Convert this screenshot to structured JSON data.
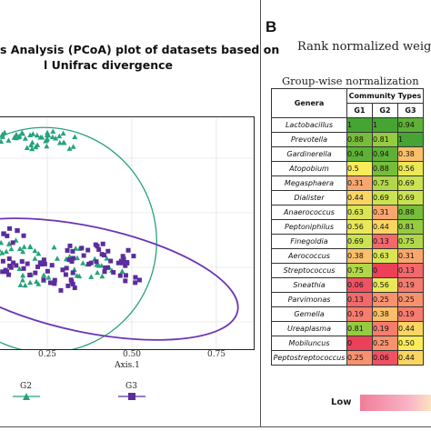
{
  "panel_a": {
    "title_line1": "s Analysis (PCoA) plot of datasets based on",
    "title_line2": "l Unifrac divergence",
    "xlabel": "Axis.1",
    "xticks": [
      "0.25",
      "0.50",
      "0.75"
    ],
    "legend": [
      {
        "label": "G2",
        "marker": "triangle",
        "color": "#26a27b"
      },
      {
        "label": "G3",
        "marker": "square",
        "color": "#5b2d9c"
      }
    ]
  },
  "panel_b": {
    "letter": "B",
    "title": "Rank normalized weights",
    "subtitle": "Group-wise normalization",
    "table": {
      "genera_header": "Genera",
      "group_header": "Community Types",
      "columns": [
        "G1",
        "G2",
        "G3"
      ],
      "rows": [
        {
          "genus": "Lactobacillus",
          "values": [
            "1",
            "1",
            "0.94"
          ]
        },
        {
          "genus": "Prevotella",
          "values": [
            "0.88",
            "0.81",
            "1"
          ]
        },
        {
          "genus": "Gardinerella",
          "values": [
            "0.94",
            "0.94",
            "0.38"
          ]
        },
        {
          "genus": "Atopobium",
          "values": [
            "0.5",
            "0.88",
            "0.56"
          ]
        },
        {
          "genus": "Megasphaera",
          "values": [
            "0.31",
            "0.75",
            "0.69"
          ]
        },
        {
          "genus": "Dialister",
          "values": [
            "0.44",
            "0.69",
            "0.69"
          ]
        },
        {
          "genus": "Anaerococcus",
          "values": [
            "0.63",
            "0.31",
            "0.88"
          ]
        },
        {
          "genus": "Peptoniphilus",
          "values": [
            "0.56",
            "0.44",
            "0.81"
          ]
        },
        {
          "genus": "Finegoldia",
          "values": [
            "0.69",
            "0.13",
            "0.75"
          ]
        },
        {
          "genus": "Aerococcus",
          "values": [
            "0.38",
            "0.63",
            "0.31"
          ]
        },
        {
          "genus": "Streptococcus",
          "values": [
            "0.75",
            "0",
            "0.13"
          ]
        },
        {
          "genus": "Sneathia",
          "values": [
            "0.06",
            "0.56",
            "0.19"
          ]
        },
        {
          "genus": "Parvimonas",
          "values": [
            "0.13",
            "0.25",
            "0.25"
          ]
        },
        {
          "genus": "Gemella",
          "values": [
            "0.19",
            "0.38",
            "0.19"
          ]
        },
        {
          "genus": "Ureaplasma",
          "values": [
            "0.81",
            "0.19",
            "0.44"
          ]
        },
        {
          "genus": "Mobiluncus",
          "values": [
            "0",
            "0.25",
            "0.50"
          ]
        },
        {
          "genus": "Peptostreptococcus",
          "values": [
            "0.25",
            "0.06",
            "0.44"
          ]
        }
      ]
    },
    "colorbar_low": "Low"
  },
  "colors": {
    "g2": "#26a27b",
    "g3": "#5b2d9c",
    "ellipse_g2": "#26a27b",
    "ellipse_g3": "#6a35b8"
  }
}
